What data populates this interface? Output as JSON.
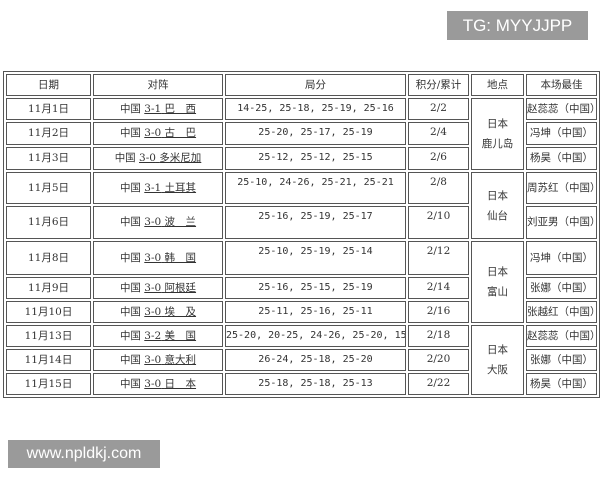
{
  "watermarks": {
    "top": "TG: MYYJJPP",
    "bottom": "www.npldkj.com"
  },
  "headers": [
    "日期",
    "对阵",
    "局分",
    "积分/累计",
    "地点",
    "本场最佳"
  ],
  "rows": [
    {
      "date": "11月1日",
      "team": "中国",
      "result": "3-1",
      "opp": "巴　西",
      "scores": "14-25, 25-18, 25-19, 25-16",
      "pts": "2/2",
      "best": "赵蕊蕊（中国）"
    },
    {
      "date": "11月2日",
      "team": "中国",
      "result": "3-0",
      "opp": "古　巴",
      "scores": "25-20, 25-17, 25-19",
      "pts": "2/4",
      "best": "冯坤（中国）"
    },
    {
      "date": "11月3日",
      "team": "中国",
      "result": "3-0",
      "opp": "多米尼加",
      "scores": "25-12, 25-12, 25-15",
      "pts": "2/6",
      "best": "杨昊（中国）"
    },
    {
      "date": "11月5日",
      "team": "中国",
      "result": "3-1",
      "opp": "土耳其",
      "scores": "25-10, 24-26, 25-21, 25-21",
      "pts": "2/8",
      "best": "周苏红（中国）"
    },
    {
      "date": "11月6日",
      "team": "中国",
      "result": "3-0",
      "opp": "波　兰",
      "scores": "25-16, 25-19, 25-17",
      "pts": "2/10",
      "best": "刘亚男（中国）"
    },
    {
      "date": "11月8日",
      "team": "中国",
      "result": "3-0",
      "opp": "韩　国",
      "scores": "25-10, 25-19, 25-14",
      "pts": "2/12",
      "best": "冯坤（中国）"
    },
    {
      "date": "11月9日",
      "team": "中国",
      "result": "3-0",
      "opp": "阿根廷",
      "scores": "25-16, 25-15, 25-19",
      "pts": "2/14",
      "best": "张娜（中国）"
    },
    {
      "date": "11月10日",
      "team": "中国",
      "result": "3-0",
      "opp": "埃　及",
      "scores": "25-11, 25-16, 25-11",
      "pts": "2/16",
      "best": "张越红（中国）"
    },
    {
      "date": "11月13日",
      "team": "中国",
      "result": "3-2",
      "opp": "美　国",
      "scores": "25-20, 20-25, 24-26, 25-20, 15-11",
      "pts": "2/18",
      "best": "赵蕊蕊（中国）"
    },
    {
      "date": "11月14日",
      "team": "中国",
      "result": "3-0",
      "opp": "意大利",
      "scores": "26-24, 25-18, 25-20",
      "pts": "2/20",
      "best": "张娜（中国）"
    },
    {
      "date": "11月15日",
      "team": "中国",
      "result": "3-0",
      "opp": "日　本",
      "scores": "25-18, 25-18, 25-13",
      "pts": "2/22",
      "best": "杨昊（中国）"
    }
  ],
  "locations": [
    {
      "country": "日本",
      "city": "鹿儿岛",
      "span": 3
    },
    {
      "country": "日本",
      "city": "仙台",
      "span": 2
    },
    {
      "country": "日本",
      "city": "富山",
      "span": 3
    },
    {
      "country": "日本",
      "city": "大阪",
      "span": 3
    }
  ]
}
